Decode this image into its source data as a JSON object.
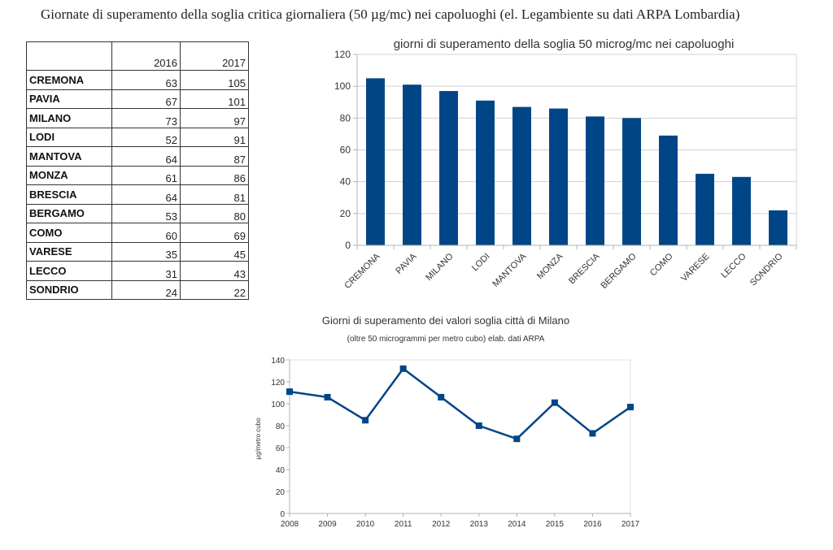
{
  "document": {
    "title": "Giornate di superamento della soglia critica giornaliera (50 µg/mc) nei capoluoghi (el. Legambiente su dati ARPA Lombardia)"
  },
  "table": {
    "headers": [
      "",
      "2016",
      "2017"
    ],
    "rows": [
      {
        "city": "CREMONA",
        "y2016": "63",
        "y2017": "105"
      },
      {
        "city": "PAVIA",
        "y2016": "67",
        "y2017": "101"
      },
      {
        "city": "MILANO",
        "y2016": "73",
        "y2017": "97"
      },
      {
        "city": "LODI",
        "y2016": "52",
        "y2017": "91"
      },
      {
        "city": "MANTOVA",
        "y2016": "64",
        "y2017": "87"
      },
      {
        "city": "MONZA",
        "y2016": "61",
        "y2017": "86"
      },
      {
        "city": "BRESCIA",
        "y2016": "64",
        "y2017": "81"
      },
      {
        "city": "BERGAMO",
        "y2016": "53",
        "y2017": "80"
      },
      {
        "city": "COMO",
        "y2016": "60",
        "y2017": "69"
      },
      {
        "city": "VARESE",
        "y2016": "35",
        "y2017": "45"
      },
      {
        "city": "LECCO",
        "y2016": "31",
        "y2017": "43"
      },
      {
        "city": "SONDRIO",
        "y2016": "24",
        "y2017": "22"
      }
    ]
  },
  "colors": {
    "series": "#004586",
    "grid": "#d0d0d0",
    "axis": "#b3b3b3"
  },
  "chart_data": [
    {
      "type": "bar",
      "title": "giorni di superamento della soglia 50 microg/mc nei capoluoghi",
      "xlabel": "",
      "ylabel": "",
      "categories": [
        "CREMONA",
        "PAVIA",
        "MILANO",
        "LODI",
        "MANTOVA",
        "MONZA",
        "BRESCIA",
        "BERGAMO",
        "COMO",
        "VARESE",
        "LECCO",
        "SONDRIO"
      ],
      "values": [
        105,
        101,
        97,
        91,
        87,
        86,
        81,
        80,
        69,
        45,
        43,
        22
      ],
      "ylim": [
        0,
        120
      ],
      "yticks": [
        0,
        20,
        40,
        60,
        80,
        100,
        120
      ],
      "grid": true,
      "legend": "none"
    },
    {
      "type": "line",
      "title": "Giorni di superamento dei valori soglia città di Milano",
      "subtitle": "(oltre 50 microgrammi per metro cubo) elab. dati ARPA",
      "xlabel": "",
      "ylabel": "μg/metro cubo",
      "x": [
        "2008",
        "2009",
        "2010",
        "2011",
        "2012",
        "2013",
        "2014",
        "2015",
        "2016",
        "2017"
      ],
      "values": [
        111,
        106,
        85,
        132,
        106,
        80,
        68,
        101,
        73,
        97
      ],
      "ylim": [
        0,
        140
      ],
      "yticks": [
        0,
        20,
        40,
        60,
        80,
        100,
        120,
        140
      ],
      "grid": false,
      "legend": "none",
      "marker": "square"
    }
  ]
}
